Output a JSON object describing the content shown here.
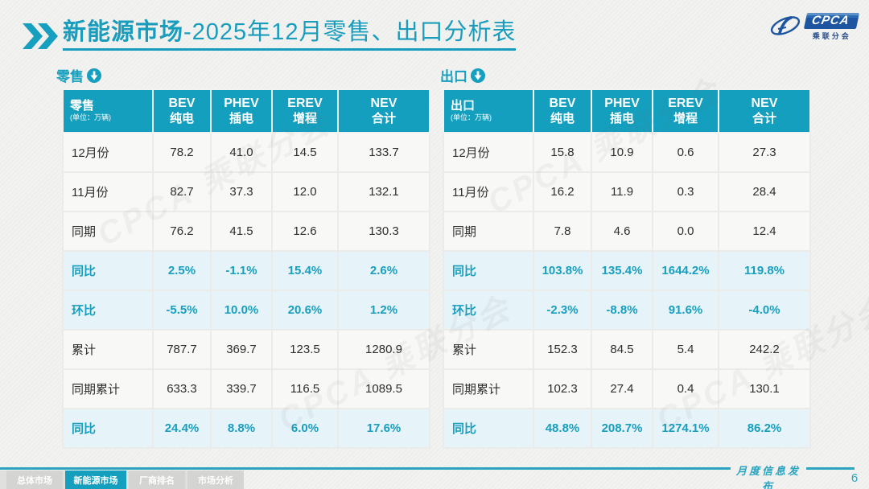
{
  "colors": {
    "accent": "#179fbf",
    "header_bg": "#149fbe",
    "pct_row_bg": "#e6f3f8",
    "logo_blue": "#1e55a0",
    "line": "#2ba4c0"
  },
  "title": {
    "highlight": "新能源市场",
    "rest": "-2025年12月零售、出口分析表"
  },
  "logo": {
    "text": "CPCA",
    "subtext": "乘联分会"
  },
  "watermark": {
    "text": "CPCA 乘联分会"
  },
  "tables": [
    {
      "section_label": "零售",
      "header": {
        "label": "零售",
        "unit": "(单位：万辆)",
        "columns": [
          {
            "en": "BEV",
            "zh": "纯电"
          },
          {
            "en": "PHEV",
            "zh": "插电"
          },
          {
            "en": "EREV",
            "zh": "增程"
          },
          {
            "en": "NEV",
            "zh": "合计"
          }
        ]
      },
      "rows": [
        {
          "label": "12月份",
          "type": "normal",
          "values": [
            "78.2",
            "41.0",
            "14.5",
            "133.7"
          ]
        },
        {
          "label": "11月份",
          "type": "normal",
          "values": [
            "82.7",
            "37.3",
            "12.0",
            "132.1"
          ]
        },
        {
          "label": "同期",
          "type": "normal",
          "values": [
            "76.2",
            "41.5",
            "12.6",
            "130.3"
          ]
        },
        {
          "label": "同比",
          "type": "pct",
          "values": [
            "2.5%",
            "-1.1%",
            "15.4%",
            "2.6%"
          ]
        },
        {
          "label": "环比",
          "type": "pct",
          "values": [
            "-5.5%",
            "10.0%",
            "20.6%",
            "1.2%"
          ]
        },
        {
          "label": "累计",
          "type": "normal",
          "values": [
            "787.7",
            "369.7",
            "123.5",
            "1280.9"
          ]
        },
        {
          "label": "同期累计",
          "type": "normal",
          "values": [
            "633.3",
            "339.7",
            "116.5",
            "1089.5"
          ]
        },
        {
          "label": "同比",
          "type": "pct",
          "values": [
            "24.4%",
            "8.8%",
            "6.0%",
            "17.6%"
          ]
        }
      ]
    },
    {
      "section_label": "出口",
      "header": {
        "label": "出口",
        "unit": "(单位：万辆)",
        "columns": [
          {
            "en": "BEV",
            "zh": "纯电"
          },
          {
            "en": "PHEV",
            "zh": "插电"
          },
          {
            "en": "EREV",
            "zh": "增程"
          },
          {
            "en": "NEV",
            "zh": "合计"
          }
        ]
      },
      "rows": [
        {
          "label": "12月份",
          "type": "normal",
          "values": [
            "15.8",
            "10.9",
            "0.6",
            "27.3"
          ]
        },
        {
          "label": "11月份",
          "type": "normal",
          "values": [
            "16.2",
            "11.9",
            "0.3",
            "28.4"
          ]
        },
        {
          "label": "同期",
          "type": "normal",
          "values": [
            "7.8",
            "4.6",
            "0.0",
            "12.4"
          ]
        },
        {
          "label": "同比",
          "type": "pct",
          "values": [
            "103.8%",
            "135.4%",
            "1644.2%",
            "119.8%"
          ]
        },
        {
          "label": "环比",
          "type": "pct",
          "values": [
            "-2.3%",
            "-8.8%",
            "91.6%",
            "-4.0%"
          ]
        },
        {
          "label": "累计",
          "type": "normal",
          "values": [
            "152.3",
            "84.5",
            "5.4",
            "242.2"
          ]
        },
        {
          "label": "同期累计",
          "type": "normal",
          "values": [
            "102.3",
            "27.4",
            "0.4",
            "130.1"
          ]
        },
        {
          "label": "同比",
          "type": "pct",
          "values": [
            "48.8%",
            "208.7%",
            "1274.1%",
            "86.2%"
          ]
        }
      ]
    }
  ],
  "nav": {
    "tabs": [
      {
        "label": "总体市场",
        "active": false
      },
      {
        "label": "新能源市场",
        "active": true
      },
      {
        "label": "厂商排名",
        "active": false
      },
      {
        "label": "市场分析",
        "active": false
      }
    ]
  },
  "footer": {
    "label": "月度信息发布",
    "page_number": "6"
  }
}
